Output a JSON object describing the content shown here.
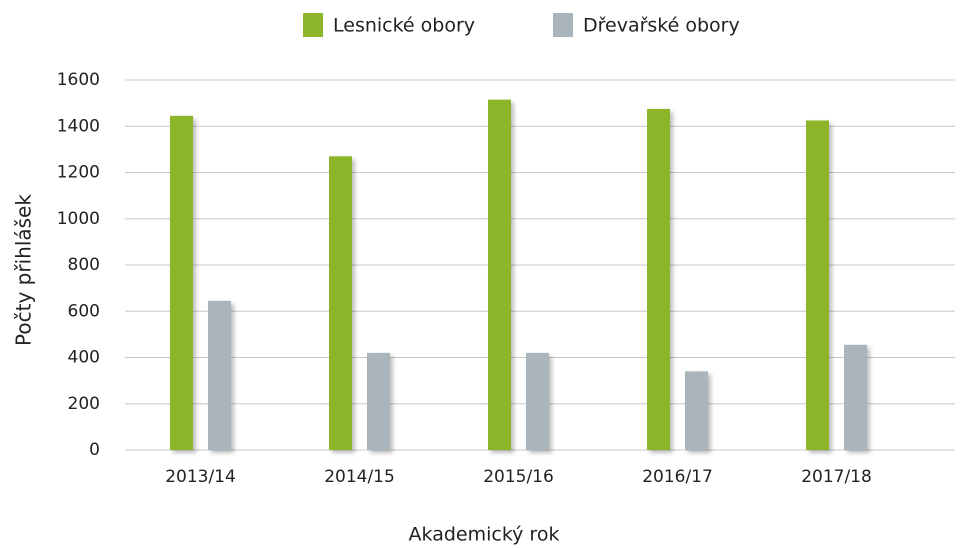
{
  "chart_data": {
    "type": "bar",
    "categories": [
      "2013/14",
      "2014/15",
      "2015/16",
      "2016/17",
      "2017/18"
    ],
    "series": [
      {
        "name": "Lesnické obory",
        "color": "#8db52c",
        "values": [
          1445,
          1270,
          1515,
          1475,
          1425
        ]
      },
      {
        "name": "Dřevařské obory",
        "color": "#a9b4bb",
        "values": [
          645,
          420,
          420,
          340,
          455
        ]
      }
    ],
    "x_label": "Akademický rok",
    "y_label": "Počty přihlášek",
    "ylim": [
      0,
      1600
    ],
    "yticks": [
      0,
      200,
      400,
      600,
      800,
      1000,
      1200,
      1400,
      1600
    ],
    "grid": true,
    "legend": "top"
  }
}
